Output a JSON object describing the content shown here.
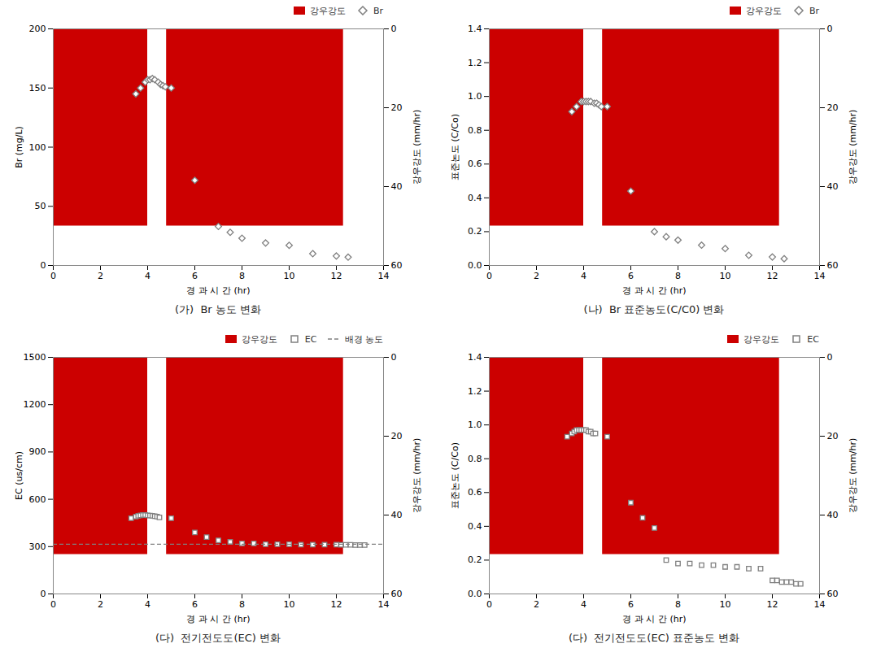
{
  "chart_data": [
    {
      "type": "scatter",
      "title": "(가)  Br 농도 변화",
      "x_label": "경 과 시 간 (hr)",
      "y_label": "Br (mg/L)",
      "y2_label": "강우강도 (mm/hr)",
      "xlim": [
        0,
        14
      ],
      "xticks": [
        0,
        2,
        4,
        6,
        8,
        10,
        12,
        14
      ],
      "ylim": [
        0,
        200
      ],
      "yticks": [
        0,
        50,
        100,
        150,
        200
      ],
      "y2lim": [
        60,
        0
      ],
      "y2ticks": [
        0,
        20,
        40,
        60
      ],
      "grid": false,
      "legend": "upper right",
      "series": [
        {
          "name": "강우강도",
          "type": "area",
          "axis": "y2",
          "color": "#cc0000",
          "x1": [
            0.0,
            4.8
          ],
          "x2": [
            4.0,
            12.3
          ],
          "values": [
            50,
            50
          ]
        },
        {
          "name": "Br",
          "type": "scatter",
          "marker": "diamond",
          "color": "gray",
          "x": [
            3.5,
            3.7,
            3.9,
            4.0,
            4.1,
            4.2,
            4.3,
            4.45,
            4.55,
            4.65,
            4.75,
            5.0,
            6.0,
            7.0,
            7.5,
            8.0,
            9.0,
            10.0,
            11.0,
            12.0,
            12.5
          ],
          "values": [
            145,
            150,
            155,
            157,
            157,
            158,
            157,
            155,
            153,
            152,
            151,
            150,
            72,
            33,
            28,
            23,
            19,
            17,
            10,
            8,
            7
          ]
        }
      ]
    },
    {
      "type": "scatter",
      "title": "(나)  Br 표준농도(C/C0) 변화",
      "x_label": "경 과 시 간 (hr)",
      "y_label": "표준논도 (C/Co)",
      "y2_label": "강우강도 (mm/hr)",
      "xlim": [
        0,
        14
      ],
      "xticks": [
        0,
        2,
        4,
        6,
        8,
        10,
        12,
        14
      ],
      "ylim": [
        0.0,
        1.4
      ],
      "yticks": [
        {
          "value": 0,
          "label": "0.0"
        },
        0.2,
        0.4,
        0.6,
        0.8,
        {
          "value": 1,
          "label": "1.0"
        },
        1.2,
        1.4
      ],
      "y2lim": [
        60,
        0
      ],
      "y2ticks": [
        0,
        20,
        40,
        60
      ],
      "grid": false,
      "legend": "upper right",
      "series": [
        {
          "name": "강우강도",
          "type": "area",
          "axis": "y2",
          "color": "#cc0000",
          "x1": [
            0.0,
            4.8
          ],
          "x2": [
            4.0,
            12.3
          ],
          "values": [
            50,
            50
          ]
        },
        {
          "name": "Br",
          "type": "scatter",
          "marker": "diamond",
          "color": "gray",
          "x": [
            3.5,
            3.7,
            3.9,
            4.0,
            4.1,
            4.2,
            4.3,
            4.45,
            4.55,
            4.65,
            4.75,
            5.0,
            6.0,
            7.0,
            7.5,
            8.0,
            9.0,
            10.0,
            11.0,
            12.0,
            12.5
          ],
          "values": [
            0.91,
            0.94,
            0.97,
            0.97,
            0.97,
            0.97,
            0.97,
            0.96,
            0.96,
            0.95,
            0.94,
            0.94,
            0.44,
            0.2,
            0.17,
            0.15,
            0.12,
            0.1,
            0.06,
            0.05,
            0.04
          ]
        }
      ]
    },
    {
      "type": "scatter",
      "title": "(다)  전기전도도(EC) 변화",
      "x_label": "경 과 시 간 (hr)",
      "y_label": "EC (us/cm)",
      "y2_label": "강우강도 (mm/hr)",
      "xlim": [
        0,
        14
      ],
      "xticks": [
        0,
        2,
        4,
        6,
        8,
        10,
        12,
        14
      ],
      "ylim": [
        0,
        1500
      ],
      "yticks": [
        0,
        300,
        600,
        900,
        1200,
        1500
      ],
      "y2lim": [
        60,
        0
      ],
      "y2ticks": [
        0,
        20,
        40,
        60
      ],
      "grid": false,
      "legend": "upper right",
      "series": [
        {
          "name": "강우강도",
          "type": "area",
          "axis": "y2",
          "color": "#cc0000",
          "x1": [
            0.0,
            4.8
          ],
          "x2": [
            4.0,
            12.3
          ],
          "values": [
            50,
            50
          ]
        },
        {
          "name": "EC",
          "type": "scatter",
          "marker": "square",
          "color": "gray",
          "x": [
            3.3,
            3.5,
            3.6,
            3.7,
            3.8,
            3.9,
            4.0,
            4.1,
            4.2,
            4.3,
            4.4,
            4.5,
            5.0,
            6.0,
            6.5,
            7.0,
            7.5,
            8.0,
            8.5,
            9.0,
            9.5,
            10.0,
            10.5,
            11.0,
            11.5,
            12.0,
            12.2,
            12.4,
            12.6,
            12.8,
            13.0,
            13.2
          ],
          "values": [
            480,
            490,
            495,
            498,
            500,
            500,
            498,
            497,
            495,
            493,
            490,
            485,
            480,
            390,
            360,
            340,
            330,
            320,
            320,
            315,
            315,
            315,
            313,
            313,
            312,
            312,
            311,
            311,
            311,
            310,
            310,
            310
          ]
        },
        {
          "name": "배경 농도",
          "type": "hline",
          "line_style": "dashed",
          "color": "gray",
          "values": [
            315
          ]
        }
      ]
    },
    {
      "type": "scatter",
      "title": "(다)  전기전도도(EC) 표준농도 변화",
      "x_label": "경 과 시 간 (hr)",
      "y_label": "표준논도 (C/Co)",
      "y2_label": "강우강도 (mm/hr)",
      "xlim": [
        0,
        14
      ],
      "xticks": [
        0,
        2,
        4,
        6,
        8,
        10,
        12,
        14
      ],
      "ylim": [
        0.0,
        1.4
      ],
      "yticks": [
        {
          "value": 0,
          "label": "0.0"
        },
        0.2,
        0.4,
        0.6,
        0.8,
        {
          "value": 1,
          "label": "1.0"
        },
        1.2,
        1.4
      ],
      "y2lim": [
        60,
        0
      ],
      "y2ticks": [
        0,
        20,
        40,
        60
      ],
      "grid": false,
      "legend": "upper right",
      "series": [
        {
          "name": "강우강도",
          "type": "area",
          "axis": "y2",
          "color": "#cc0000",
          "x1": [
            0.0,
            4.8
          ],
          "x2": [
            4.0,
            12.3
          ],
          "values": [
            50,
            50
          ]
        },
        {
          "name": "EC",
          "type": "scatter",
          "marker": "square",
          "color": "gray",
          "x": [
            3.3,
            3.5,
            3.6,
            3.7,
            3.8,
            3.9,
            4.0,
            4.1,
            4.2,
            4.3,
            4.4,
            4.5,
            5.0,
            6.0,
            6.5,
            7.0,
            7.5,
            8.0,
            8.5,
            9.0,
            9.5,
            10.0,
            10.5,
            11.0,
            11.5,
            12.0,
            12.2,
            12.4,
            12.6,
            12.8,
            13.0,
            13.2
          ],
          "values": [
            0.93,
            0.95,
            0.96,
            0.97,
            0.97,
            0.97,
            0.97,
            0.97,
            0.96,
            0.96,
            0.95,
            0.95,
            0.93,
            0.54,
            0.45,
            0.39,
            0.2,
            0.18,
            0.18,
            0.17,
            0.17,
            0.16,
            0.16,
            0.15,
            0.15,
            0.08,
            0.08,
            0.07,
            0.07,
            0.07,
            0.06,
            0.06
          ]
        }
      ]
    }
  ]
}
